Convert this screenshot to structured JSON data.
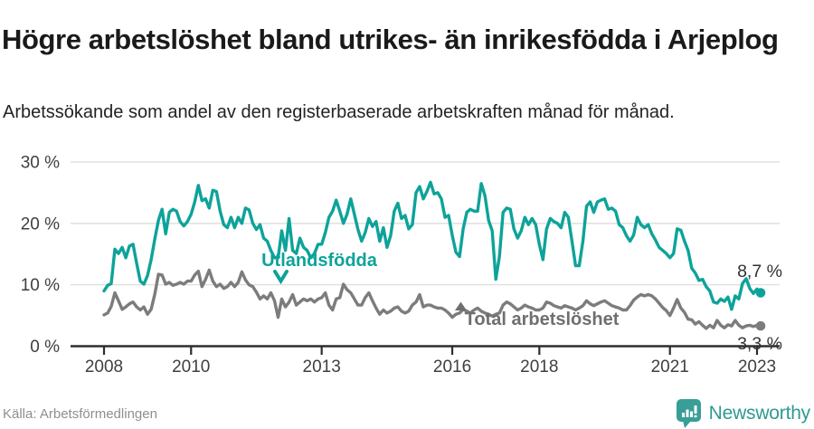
{
  "header": {
    "title": "Högre arbetslöshet bland utrikes- än inrikesfödda i Arjeplog",
    "subtitle": "Arbetssökande som andel av den registerbaserade arbetskraften månad för månad."
  },
  "chart_data": {
    "type": "line",
    "title": "Högre arbetslöshet bland utrikes- än inrikesfödda i Arjeplog",
    "subtitle": "Arbetssökande som andel av den registerbaserade arbetskraften månad för månad.",
    "unit": "%",
    "x_start": "2008-01",
    "x_end": "2023-02",
    "x_frequency": "monthly",
    "ylim": [
      0,
      30
    ],
    "grid": true,
    "legend_position": "inline-annotations",
    "y_ticks": [
      {
        "v": 0,
        "label": "0 %"
      },
      {
        "v": 10,
        "label": "10 %"
      },
      {
        "v": 20,
        "label": "20 %"
      },
      {
        "v": 30,
        "label": "30 %"
      }
    ],
    "x_ticks": [
      {
        "year": 2008,
        "label": "2008"
      },
      {
        "year": 2010,
        "label": "2010"
      },
      {
        "year": 2013,
        "label": "2013"
      },
      {
        "year": 2016,
        "label": "2016"
      },
      {
        "year": 2018,
        "label": "2018"
      },
      {
        "year": 2021,
        "label": "2021"
      },
      {
        "year": 2023,
        "label": "2023"
      }
    ],
    "series": [
      {
        "name": "Utlandsfödda",
        "color": "#0da39a",
        "end_label": "8,7 %",
        "end_value": 8.7,
        "values": [
          9.0,
          9.9,
          10.2,
          15.8,
          15.1,
          16.1,
          14.4,
          16.3,
          16.6,
          13.5,
          10.6,
          10.1,
          11.5,
          14.1,
          17.5,
          20.5,
          22.3,
          18.3,
          21.8,
          22.3,
          22.0,
          20.3,
          19.6,
          20.3,
          21.5,
          23.5,
          26.2,
          23.7,
          24.0,
          22.5,
          25.4,
          25.2,
          22.0,
          19.8,
          19.3,
          21.0,
          19.3,
          21.0,
          20.0,
          22.5,
          22.2,
          20.0,
          19.0,
          19.8,
          17.6,
          17.1,
          15.6,
          14.4,
          14.4,
          18.8,
          15.6,
          20.8,
          15.6,
          15.1,
          17.6,
          16.1,
          15.6,
          14.4,
          15.1,
          16.6,
          16.6,
          18.5,
          21.0,
          22.0,
          23.8,
          22.0,
          20.0,
          21.5,
          24.0,
          21.5,
          19.0,
          17.1,
          18.5,
          20.8,
          19.5,
          20.3,
          17.1,
          19.3,
          16.1,
          18.0,
          22.0,
          23.3,
          20.8,
          21.3,
          19.1,
          19.8,
          25.0,
          26.0,
          24.0,
          25.2,
          26.7,
          24.8,
          25.0,
          24.0,
          21.0,
          21.3,
          18.0,
          15.3,
          14.6,
          19.1,
          21.8,
          22.3,
          22.0,
          22.0,
          26.5,
          24.5,
          20.5,
          18.8,
          10.9,
          14.6,
          21.8,
          22.5,
          22.3,
          19.1,
          17.6,
          18.8,
          21.0,
          19.8,
          20.8,
          19.8,
          16.6,
          14.1,
          19.1,
          20.8,
          20.3,
          20.0,
          19.3,
          21.8,
          21.0,
          17.1,
          13.1,
          13.1,
          17.1,
          22.8,
          23.5,
          21.8,
          23.5,
          23.8,
          24.0,
          22.3,
          22.5,
          22.0,
          19.8,
          19.3,
          18.0,
          17.1,
          18.1,
          21.0,
          19.8,
          19.3,
          19.8,
          18.3,
          17.3,
          16.1,
          15.6,
          15.1,
          14.4,
          15.1,
          19.1,
          18.9,
          17.1,
          15.6,
          12.7,
          11.9,
          10.7,
          10.9,
          9.7,
          9.0,
          7.2,
          7.0,
          7.7,
          7.3,
          8.0,
          6.0,
          8.2,
          7.7,
          10.2,
          11.0,
          9.4,
          8.6,
          9.3,
          8.7
        ]
      },
      {
        "name": "Total arbetslöshet",
        "color": "#7c7c7c",
        "end_label": "3,3 %",
        "end_value": 3.3,
        "values": [
          5.1,
          5.4,
          6.5,
          8.7,
          7.4,
          6.0,
          6.4,
          6.9,
          7.2,
          6.4,
          5.9,
          6.4,
          5.2,
          6.0,
          8.5,
          11.7,
          11.6,
          10.1,
          10.4,
          9.9,
          10.1,
          10.4,
          10.1,
          10.6,
          10.6,
          11.6,
          12.2,
          9.7,
          10.9,
          12.4,
          10.6,
          9.7,
          10.1,
          9.4,
          9.7,
          10.4,
          9.7,
          10.4,
          12.1,
          10.8,
          10.0,
          9.7,
          8.8,
          7.7,
          8.2,
          7.7,
          8.7,
          7.4,
          4.7,
          7.7,
          6.4,
          7.2,
          8.4,
          6.7,
          7.2,
          7.7,
          7.4,
          7.7,
          7.2,
          7.7,
          7.9,
          8.7,
          6.7,
          5.9,
          7.7,
          7.9,
          10.1,
          9.2,
          8.7,
          7.7,
          6.7,
          6.7,
          7.9,
          8.7,
          7.4,
          6.2,
          5.2,
          5.9,
          5.4,
          5.7,
          6.2,
          6.4,
          5.7,
          5.4,
          5.7,
          6.7,
          7.2,
          8.4,
          6.4,
          6.7,
          6.7,
          6.4,
          6.2,
          6.2,
          5.9,
          5.4,
          4.7,
          5.2,
          5.4,
          6.0,
          5.7,
          5.4,
          5.9,
          6.2,
          5.7,
          5.4,
          5.2,
          4.9,
          5.2,
          5.4,
          6.7,
          7.2,
          6.9,
          6.4,
          5.9,
          6.2,
          6.7,
          6.4,
          6.2,
          5.9,
          5.9,
          6.2,
          7.2,
          7.0,
          6.6,
          6.4,
          6.2,
          6.6,
          6.4,
          6.2,
          5.9,
          6.2,
          6.6,
          7.4,
          6.9,
          6.6,
          6.9,
          7.2,
          7.4,
          7.0,
          6.6,
          6.4,
          6.2,
          5.9,
          5.9,
          6.6,
          7.5,
          8.0,
          8.4,
          8.2,
          8.4,
          8.2,
          7.7,
          7.0,
          6.3,
          5.8,
          5.0,
          6.2,
          7.6,
          6.2,
          5.5,
          4.4,
          4.3,
          3.6,
          4.0,
          3.4,
          2.9,
          3.4,
          3.0,
          4.2,
          3.4,
          3.0,
          3.5,
          3.3,
          4.2,
          3.4,
          3.0,
          3.3,
          3.4,
          3.2,
          3.4,
          3.3
        ]
      }
    ],
    "colors": {
      "accent_teal": "#0da39a",
      "series_gray": "#7c7c7c",
      "axis": "#2e2e2e",
      "gridline": "#dadada",
      "tick_text": "#3f3f3f",
      "end_label_text": "#333333"
    }
  },
  "footer": {
    "source": "Källa: Arbetsförmedlingen",
    "brand": "Newsworthy",
    "brand_color": "#2e9a91",
    "logo_color": "#389e97"
  }
}
